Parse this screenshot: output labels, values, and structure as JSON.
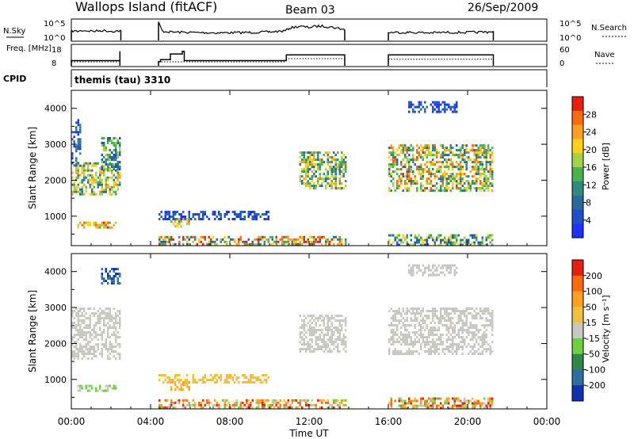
{
  "header": {
    "station": "Wallops Island (fitACF)",
    "beam": "Beam 03",
    "date": "26/Sep/2009"
  },
  "chart_data": [
    {
      "type": "line",
      "panel": "noise",
      "left_label": "N.Sky",
      "left_ticks": [
        "10^5",
        "10^0"
      ],
      "right_label": "N.Search",
      "right_ticks": [
        "10^5",
        "10^0"
      ],
      "x": [
        0.0,
        0.3,
        0.6,
        0.9,
        1.2,
        1.5,
        1.8,
        2.1,
        2.4,
        2.5,
        4.4,
        4.6,
        5,
        6,
        7,
        8,
        9,
        10,
        10.8,
        11,
        11.5,
        12,
        12.5,
        13,
        13.5,
        13.8,
        16.0,
        17,
        18,
        19,
        20,
        21,
        21.3
      ],
      "values": [
        2.3,
        2.2,
        2.4,
        2.3,
        2.2,
        2.4,
        2.3,
        2.2,
        2.3,
        2.4,
        4.5,
        2.2,
        2.0,
        1.9,
        1.8,
        1.8,
        1.9,
        2.0,
        2.3,
        3.0,
        3.5,
        3.2,
        3.6,
        3.4,
        3.0,
        2.6,
        1.9,
        1.9,
        1.8,
        1.9,
        1.9,
        2.0,
        2.2
      ],
      "data_gaps": [
        [
          2.55,
          4.35
        ],
        [
          13.85,
          16.0
        ],
        [
          21.35,
          24
        ]
      ]
    },
    {
      "type": "line",
      "panel": "frequency",
      "left_label": "Freq. [MHz]",
      "left_ticks": [
        "18",
        "8"
      ],
      "right_label": "Nave",
      "right_ticks": [
        "60",
        "0"
      ],
      "freq_x": [
        0.0,
        2.4,
        2.45,
        4.4,
        4.5,
        5.0,
        5.5,
        5.6,
        5.7,
        10.8,
        10.85,
        13.8,
        16.0,
        21.3
      ],
      "freq_values": [
        10.3,
        10.3,
        15.2,
        9.8,
        10.8,
        13.8,
        13.8,
        15.2,
        10.3,
        10.3,
        13.3,
        13.3,
        13.3,
        13.3
      ],
      "nave_x": [
        0.0,
        2.4,
        4.4,
        10.8,
        10.8,
        13.8,
        16.0,
        21.3
      ],
      "nave_values": [
        10,
        10,
        10,
        10,
        20,
        20,
        18,
        18
      ]
    },
    {
      "type": "heatmap",
      "panel": "power",
      "cpid": "themis (tau) 3310",
      "ylabel": "Slant Range [km]",
      "yticks": [
        1000,
        2000,
        3000,
        4000
      ],
      "ylim": [
        180,
        4500
      ],
      "xlim": [
        0,
        24
      ],
      "colorbar_title": "Power [dB]",
      "colorbar_ticks": [
        "28",
        "24",
        "20",
        "16",
        "12",
        "8",
        "4"
      ],
      "colors": [
        "#2030ff",
        "#1e50c8",
        "#2a6a9a",
        "#2f8a7a",
        "#4caf50",
        "#a6d24a",
        "#ffd11a",
        "#ffa020",
        "#ff6a10",
        "#e42010"
      ],
      "regions": [
        {
          "t": [
            0.0,
            2.5
          ],
          "r": [
            1600,
            2500
          ],
          "level": [
            2,
            7
          ]
        },
        {
          "t": [
            0.0,
            0.5
          ],
          "r": [
            2400,
            3700
          ],
          "level": [
            0,
            3
          ]
        },
        {
          "t": [
            1.5,
            2.5
          ],
          "r": [
            2300,
            3200
          ],
          "level": [
            1,
            5
          ]
        },
        {
          "t": [
            0.3,
            2.3
          ],
          "r": [
            700,
            850
          ],
          "level": [
            4,
            9
          ]
        },
        {
          "t": [
            4.4,
            10.5
          ],
          "r": [
            200,
            450
          ],
          "level": [
            1,
            9
          ]
        },
        {
          "t": [
            10.5,
            13.8
          ],
          "r": [
            200,
            450
          ],
          "level": [
            2,
            9
          ]
        },
        {
          "t": [
            4.4,
            10.0
          ],
          "r": [
            950,
            1150
          ],
          "level": [
            0,
            2
          ]
        },
        {
          "t": [
            5.0,
            6.0
          ],
          "r": [
            700,
            950
          ],
          "level": [
            3,
            8
          ]
        },
        {
          "t": [
            11.5,
            13.8
          ],
          "r": [
            1800,
            2800
          ],
          "level": [
            2,
            7
          ]
        },
        {
          "t": [
            16.0,
            21.3
          ],
          "r": [
            1700,
            3000
          ],
          "level": [
            2,
            8
          ]
        },
        {
          "t": [
            16.0,
            21.3
          ],
          "r": [
            200,
            500
          ],
          "level": [
            1,
            6
          ]
        },
        {
          "t": [
            17.0,
            19.5
          ],
          "r": [
            3900,
            4200
          ],
          "level": [
            0,
            2
          ]
        }
      ]
    },
    {
      "type": "heatmap",
      "panel": "velocity",
      "ylabel": "Slant Range [km]",
      "yticks": [
        1000,
        2000,
        3000,
        4000
      ],
      "ylim": [
        180,
        4500
      ],
      "xlim": [
        0,
        24
      ],
      "xticks": [
        "00:00",
        "04:00",
        "08:00",
        "12:00",
        "16:00",
        "20:00",
        "00:00"
      ],
      "xlabel": "Time UT",
      "colorbar_title": "Velocity [m s⁻¹]",
      "colorbar_ticks": [
        "200",
        "100",
        "50",
        "15",
        "-15",
        "-50",
        "-100",
        "-200"
      ],
      "colors": [
        "#1030b0",
        "#2f6fa0",
        "#2b8a4a",
        "#6cd040",
        "#c8c8c0",
        "#f2c040",
        "#ffa020",
        "#ff6a10",
        "#e42010"
      ],
      "regions": [
        {
          "t": [
            0.0,
            2.5
          ],
          "r": [
            1600,
            3000
          ],
          "level": [
            4,
            4
          ]
        },
        {
          "t": [
            0.3,
            2.3
          ],
          "r": [
            700,
            850
          ],
          "level": [
            3,
            4
          ]
        },
        {
          "t": [
            1.5,
            2.5
          ],
          "r": [
            3700,
            4100
          ],
          "level": [
            0,
            2
          ]
        },
        {
          "t": [
            4.4,
            13.8
          ],
          "r": [
            200,
            450
          ],
          "level": [
            3,
            8
          ]
        },
        {
          "t": [
            4.4,
            10.0
          ],
          "r": [
            950,
            1150
          ],
          "level": [
            5,
            5
          ]
        },
        {
          "t": [
            5.0,
            6.0
          ],
          "r": [
            700,
            950
          ],
          "level": [
            5,
            6
          ]
        },
        {
          "t": [
            11.5,
            13.8
          ],
          "r": [
            1800,
            2800
          ],
          "level": [
            4,
            4
          ]
        },
        {
          "t": [
            16.0,
            21.3
          ],
          "r": [
            1700,
            3000
          ],
          "level": [
            4,
            4
          ]
        },
        {
          "t": [
            16.0,
            21.3
          ],
          "r": [
            200,
            500
          ],
          "level": [
            3,
            8
          ]
        },
        {
          "t": [
            17.0,
            19.5
          ],
          "r": [
            3900,
            4200
          ],
          "level": [
            4,
            4
          ]
        }
      ]
    }
  ]
}
